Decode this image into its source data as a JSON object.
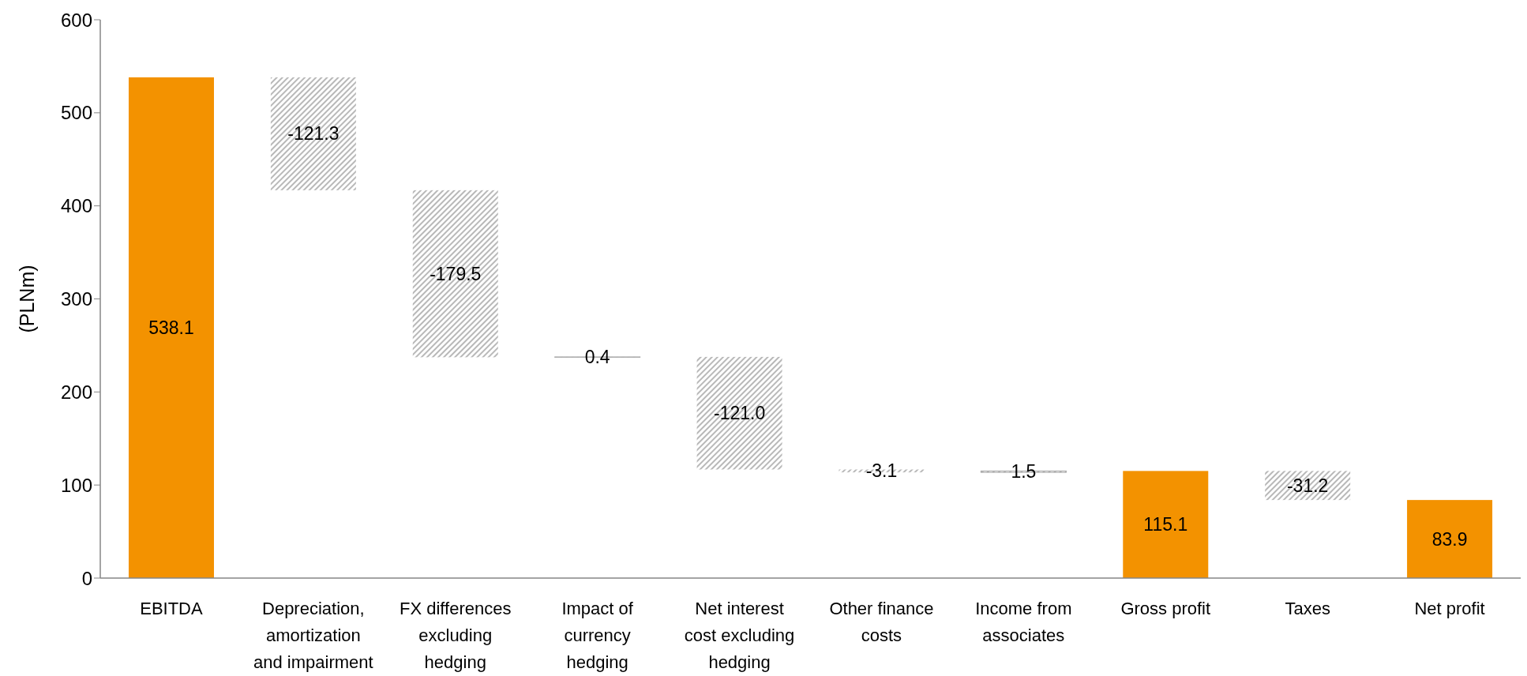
{
  "chart_data": {
    "type": "bar",
    "ylabel": "(PLNm)",
    "categories": [
      "EBITDA",
      "Depreciation, amortization and impairment",
      "FX differences excluding hedging",
      "Impact of currency hedging",
      "Net interest cost excluding hedging",
      "Other finance costs",
      "Income from associates",
      "Gross profit",
      "Taxes",
      "Net profit"
    ],
    "values": [
      538.1,
      -121.3,
      -179.5,
      0.4,
      -121.0,
      -3.1,
      1.5,
      115.1,
      -31.2,
      83.9
    ],
    "base": [
      0,
      538.1,
      416.8,
      237.3,
      237.7,
      116.7,
      113.6,
      0,
      115.1,
      0
    ],
    "colors": [
      "#f39200",
      "#a6a6a6",
      "#a6a6a6",
      "#a6a6a6",
      "#a6a6a6",
      "#a6a6a6",
      "#a6a6a6",
      "#f39200",
      "#a6a6a6",
      "#f39200"
    ],
    "value_labels": [
      "538.1",
      "-121.3",
      "-179.5",
      "0.4",
      "-121.0",
      "-3.1",
      "1.5",
      "115.1",
      "-31.2",
      "83.9"
    ],
    "ylim": [
      0,
      600
    ],
    "yticks": [
      0,
      100,
      200,
      300,
      400,
      500,
      600
    ]
  }
}
